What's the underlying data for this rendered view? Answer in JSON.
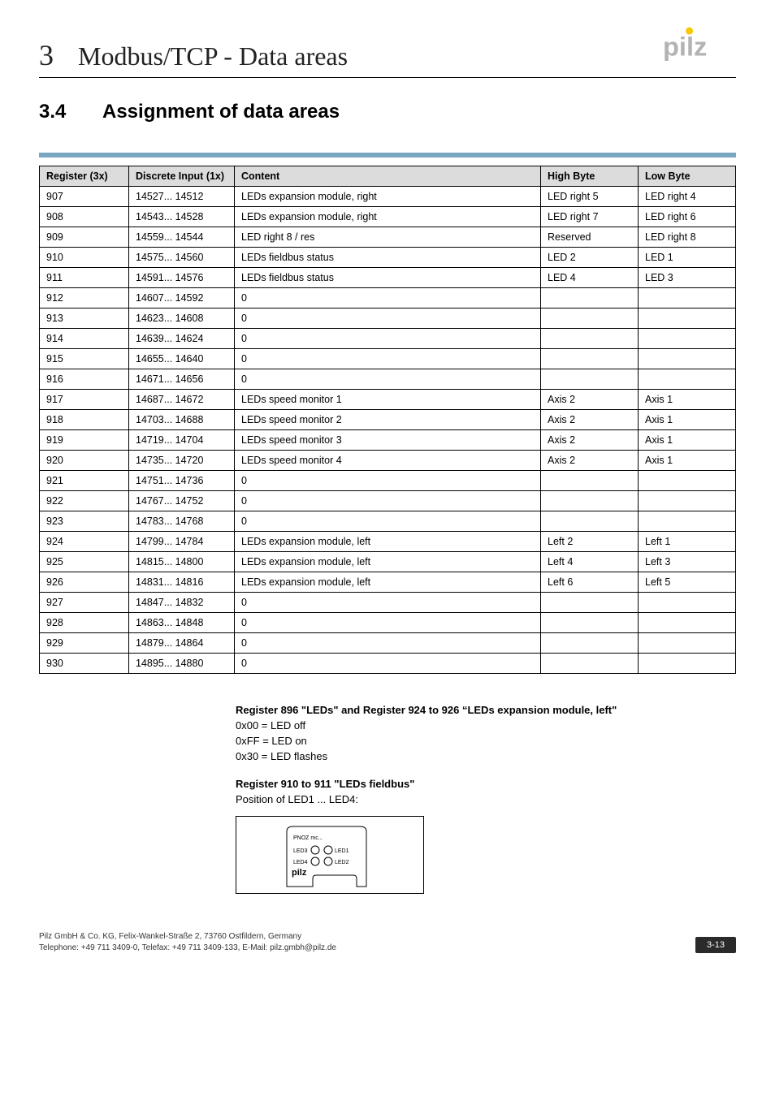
{
  "header": {
    "chapter_number": "3",
    "chapter_title": "Modbus/TCP - Data areas",
    "logo_colors": {
      "dot": "#f6c900",
      "text": "#b3b3b3"
    }
  },
  "section": {
    "number": "3.4",
    "title": "Assignment of data areas"
  },
  "bar_color": "#7aa6c2",
  "table": {
    "columns": [
      "Register (3x)",
      "Discrete Input (1x)",
      "Content",
      "High Byte",
      "Low Byte"
    ],
    "rows": [
      [
        "907",
        "14527... 14512",
        "LEDs expansion module, right",
        "LED right 5",
        "LED right 4"
      ],
      [
        "908",
        "14543... 14528",
        "LEDs expansion module, right",
        "LED right 7",
        "LED right 6"
      ],
      [
        "909",
        "14559... 14544",
        "LED right 8 / res",
        "Reserved",
        "LED right 8"
      ],
      [
        "910",
        "14575... 14560",
        "LEDs fieldbus status",
        "LED 2",
        "LED 1"
      ],
      [
        "911",
        "14591... 14576",
        "LEDs fieldbus status",
        "LED 4",
        "LED 3"
      ],
      [
        "912",
        "14607... 14592",
        "0",
        "",
        ""
      ],
      [
        "913",
        "14623... 14608",
        "0",
        "",
        ""
      ],
      [
        "914",
        "14639... 14624",
        "0",
        "",
        ""
      ],
      [
        "915",
        "14655... 14640",
        "0",
        "",
        ""
      ],
      [
        "916",
        "14671... 14656",
        "0",
        "",
        ""
      ],
      [
        "917",
        "14687... 14672",
        "LEDs speed monitor 1",
        "Axis 2",
        "Axis 1"
      ],
      [
        "918",
        "14703... 14688",
        "LEDs speed monitor 2",
        "Axis 2",
        "Axis 1"
      ],
      [
        "919",
        "14719... 14704",
        "LEDs speed monitor 3",
        "Axis 2",
        "Axis 1"
      ],
      [
        "920",
        "14735... 14720",
        "LEDs speed monitor 4",
        "Axis 2",
        "Axis 1"
      ],
      [
        "921",
        "14751... 14736",
        "0",
        "",
        ""
      ],
      [
        "922",
        "14767... 14752",
        "0",
        "",
        ""
      ],
      [
        "923",
        "14783... 14768",
        "0",
        "",
        ""
      ],
      [
        "924",
        "14799... 14784",
        "LEDs expansion module, left",
        "Left 2",
        "Left 1"
      ],
      [
        "925",
        "14815... 14800",
        "LEDs expansion module, left",
        "Left 4",
        "Left 3"
      ],
      [
        "926",
        "14831... 14816",
        "LEDs expansion module, left",
        "Left 6",
        "Left 5"
      ],
      [
        "927",
        "14847... 14832",
        "0",
        "",
        ""
      ],
      [
        "928",
        "14863... 14848",
        "0",
        "",
        ""
      ],
      [
        "929",
        "14879... 14864",
        "0",
        "",
        ""
      ],
      [
        "930",
        "14895... 14880",
        "0",
        "",
        ""
      ]
    ]
  },
  "notes": {
    "para1_title": "Register 896 \"LEDs\" and Register 924 to 926 “LEDs expansion module, left\"",
    "para1_lines": [
      "0x00 = LED off",
      "0xFF = LED on",
      "0x30 = LED flashes"
    ],
    "para2_title": "Register 910 to 911 \"LEDs fieldbus\"",
    "para2_line": "Position of LED1 ... LED4:"
  },
  "diagram": {
    "device_label": "PNOZ mc...",
    "leds": [
      "LED3",
      "LED1",
      "LED4",
      "LED2"
    ],
    "brand": "pilz",
    "font_size_small": 7,
    "circle_stroke": "#000"
  },
  "footer": {
    "line1": "Pilz GmbH & Co. KG, Felix-Wankel-Straße 2, 73760 Ostfildern, Germany",
    "line2": "Telephone: +49 711 3409-0, Telefax: +49 711 3409-133, E-Mail: pilz.gmbh@pilz.de",
    "page": "3-13"
  }
}
